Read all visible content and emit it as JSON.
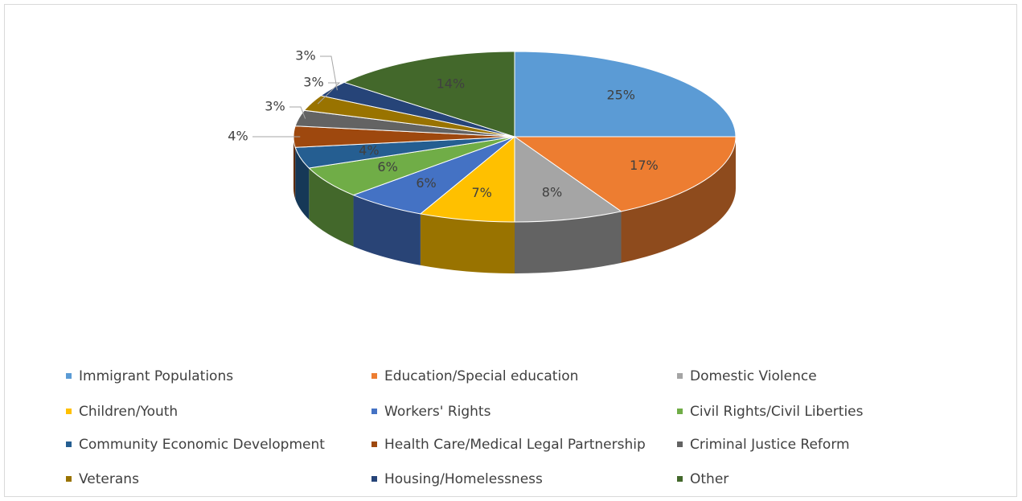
{
  "chart_data": {
    "type": "pie",
    "categories": [
      "Immigrant Populations",
      "Education/Special education",
      "Domestic Violence",
      "Children/Youth",
      "Workers' Rights",
      "Civil Rights/Civil Liberties",
      "Community Economic Development",
      "Health Care/Medical Legal Partnership",
      "Criminal Justice Reform",
      "Veterans",
      "Housing/Homelessness",
      "Other"
    ],
    "values": [
      25,
      17,
      8,
      7,
      6,
      6,
      4,
      4,
      3,
      3,
      3,
      14
    ],
    "value_labels": [
      "25%",
      "17%",
      "8%",
      "7%",
      "6%",
      "6%",
      "4%",
      "4%",
      "3%",
      "3%",
      "3%",
      "14%"
    ],
    "colors": [
      "#5b9bd5",
      "#ed7d31",
      "#a5a5a5",
      "#ffc000",
      "#4472c4",
      "#70ad47",
      "#255e91",
      "#9e480e",
      "#636363",
      "#997300",
      "#264478",
      "#43682b"
    ],
    "legend": "bottom"
  }
}
